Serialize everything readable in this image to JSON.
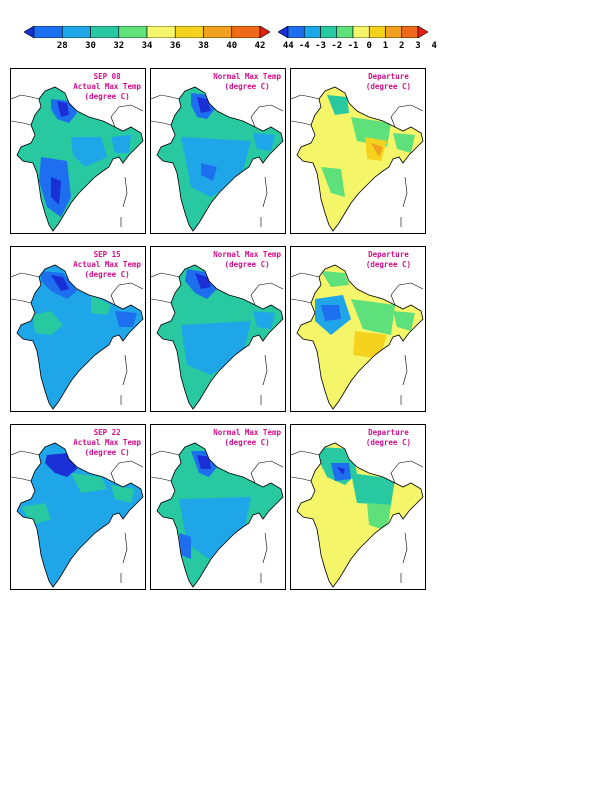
{
  "actual_scale": {
    "labels": [
      "28",
      "30",
      "32",
      "34",
      "36",
      "38",
      "40",
      "42",
      "44"
    ],
    "colors": [
      "#1a2fd6",
      "#1e6ef0",
      "#1fa6e8",
      "#28c8a0",
      "#5ee07a",
      "#f5f56a",
      "#f5d21e",
      "#f2a020",
      "#ee6a18",
      "#e81e10"
    ]
  },
  "departure_scale": {
    "labels": [
      "-4",
      "-3",
      "-2",
      "-1",
      "0",
      "1",
      "2",
      "3",
      "4"
    ],
    "colors": [
      "#1a2fd6",
      "#1e6ef0",
      "#1fa6e8",
      "#28c8a0",
      "#5ee07a",
      "#f5f56a",
      "#f5d21e",
      "#f2a020",
      "#ee6a18",
      "#e81e10"
    ]
  },
  "rows": [
    {
      "actual": {
        "line1": "SEP 08",
        "line2": "Actual Max Temp",
        "line3": "(degree C)"
      },
      "normal": {
        "line1": "Normal Max Temp",
        "line2": "(degree C)"
      },
      "departure": {
        "line1": "Departure",
        "line2": "(degree C)"
      }
    },
    {
      "actual": {
        "line1": "SEP 15",
        "line2": "Actual Max Temp",
        "line3": "(degree C)"
      },
      "normal": {
        "line1": "Normal Max Temp",
        "line2": "(degree C)"
      },
      "departure": {
        "line1": "Departure",
        "line2": "(degree C)"
      }
    },
    {
      "actual": {
        "line1": "SEP 22",
        "line2": "Actual Max Temp",
        "line3": "(degree C)"
      },
      "normal": {
        "line1": "Normal Max Temp",
        "line2": "(degree C)"
      },
      "departure": {
        "line1": "Departure",
        "line2": "(degree C)"
      }
    }
  ]
}
